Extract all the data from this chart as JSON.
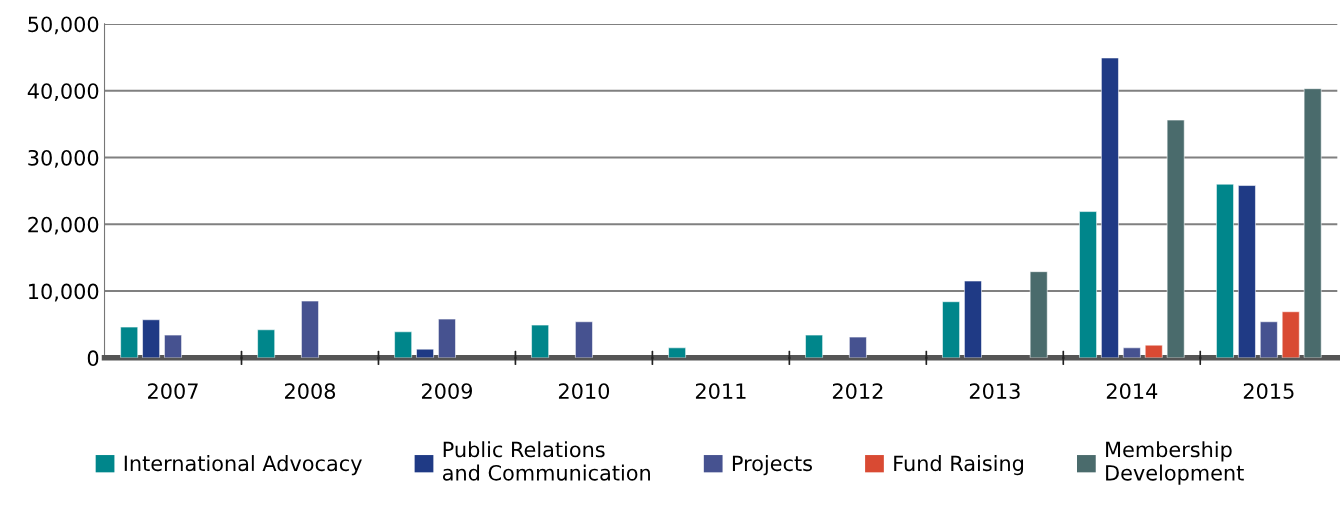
{
  "chart_data": {
    "type": "bar",
    "categories": [
      "2007",
      "2008",
      "2009",
      "2010",
      "2011",
      "2012",
      "2013",
      "2014",
      "2015"
    ],
    "series": [
      {
        "name": "International Advocacy",
        "color": "#00868b",
        "values": [
          4600,
          4200,
          3900,
          4900,
          1500,
          3400,
          8400,
          21900,
          26000
        ]
      },
      {
        "name": "Public Relations\nand Communication",
        "color": "#1f3a85",
        "values": [
          5700,
          null,
          1300,
          null,
          null,
          null,
          11500,
          44900,
          25800
        ]
      },
      {
        "name": "Projects",
        "color": "#465290",
        "values": [
          3400,
          8500,
          5800,
          5400,
          null,
          3100,
          null,
          1500,
          5400
        ]
      },
      {
        "name": "Fund Raising",
        "color": "#d94a33",
        "values": [
          null,
          null,
          null,
          null,
          null,
          null,
          null,
          1900,
          6900
        ]
      },
      {
        "name": "Membership\nDevelopment",
        "color": "#4a6b6c",
        "values": [
          null,
          null,
          null,
          null,
          null,
          null,
          12900,
          35600,
          40300
        ]
      }
    ],
    "ylim": [
      0,
      50000
    ],
    "yticks": [
      {
        "value": 0,
        "label": "0"
      },
      {
        "value": 10000,
        "label": "10,000"
      },
      {
        "value": 20000,
        "label": "20,000"
      },
      {
        "value": 30000,
        "label": "30,000"
      },
      {
        "value": 40000,
        "label": "40,000"
      },
      {
        "value": 50000,
        "label": "50,000"
      }
    ],
    "grid": "y",
    "legend": "bottom"
  }
}
